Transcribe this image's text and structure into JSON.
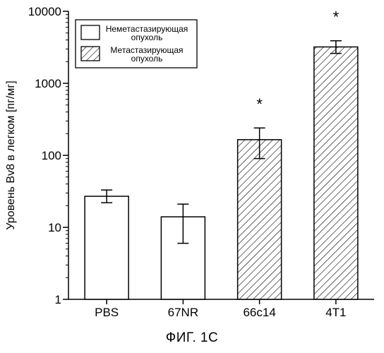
{
  "chart_data": {
    "type": "bar",
    "ylabel": "Уровень Bv8 в легком [пг/мг]",
    "yscale": "log",
    "ylim": [
      1,
      10000
    ],
    "yticks": [
      1,
      10,
      100,
      1000,
      10000
    ],
    "ytick_labels": [
      "1",
      "10",
      "100",
      "1000",
      "10000"
    ],
    "categories": [
      "PBS",
      "67NR",
      "66c14",
      "4T1"
    ],
    "values": [
      27,
      14,
      165,
      3200
    ],
    "error_low": [
      22,
      6,
      90,
      2600
    ],
    "error_high": [
      33,
      21,
      240,
      3900
    ],
    "fill": [
      "plain",
      "plain",
      "hatched",
      "hatched"
    ],
    "significance": [
      "",
      "",
      "*",
      "*"
    ],
    "legend": {
      "placement": "top-left",
      "entries": [
        {
          "line1": "Неметастазирующая",
          "line2": "опухоль",
          "fill": "plain"
        },
        {
          "line1": "Метастазирующая",
          "line2": "опухоль",
          "fill": "hatched"
        }
      ]
    },
    "grid": false
  },
  "figure_caption": "ФИГ. 1С"
}
